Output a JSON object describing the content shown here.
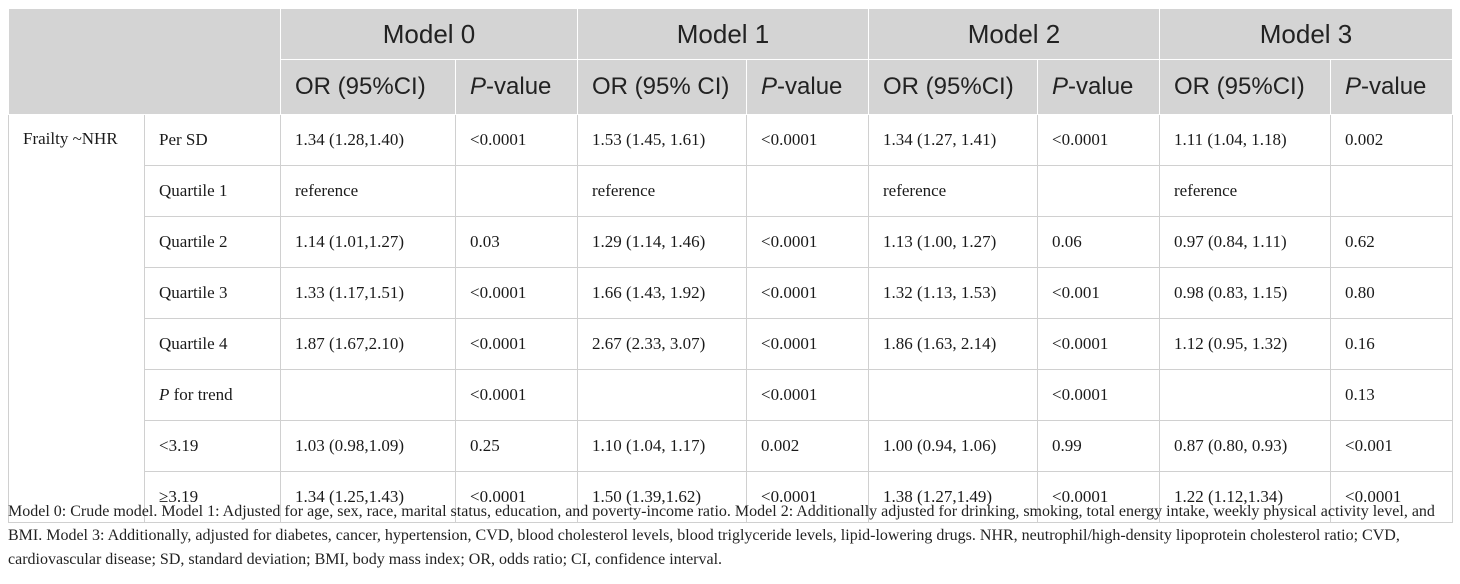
{
  "models": [
    "Model 0",
    "Model 1",
    "Model 2",
    "Model 3"
  ],
  "subheaders": {
    "or": "OR (95%CI)",
    "or_spaced": "OR (95% CI)",
    "p_italic": "P",
    "p_rest": "-value"
  },
  "group_label": "Frailty ~NHR",
  "rows": [
    {
      "label": "Per SD",
      "cells": [
        "1.34 (1.28,1.40)",
        "<0.0001",
        "1.53 (1.45, 1.61)",
        "<0.0001",
        "1.34 (1.27, 1.41)",
        "<0.0001",
        "1.11 (1.04, 1.18)",
        "0.002"
      ]
    },
    {
      "label": "Quartile 1",
      "cells": [
        "reference",
        "",
        "reference",
        "",
        "reference",
        "",
        "reference",
        ""
      ]
    },
    {
      "label": "Quartile 2",
      "cells": [
        "1.14 (1.01,1.27)",
        "0.03",
        "1.29 (1.14, 1.46)",
        "<0.0001",
        "1.13 (1.00, 1.27)",
        "0.06",
        "0.97 (0.84, 1.11)",
        "0.62"
      ]
    },
    {
      "label": "Quartile 3",
      "cells": [
        "1.33 (1.17,1.51)",
        "<0.0001",
        "1.66 (1.43, 1.92)",
        "<0.0001",
        "1.32 (1.13, 1.53)",
        "<0.001",
        "0.98 (0.83, 1.15)",
        "0.80"
      ]
    },
    {
      "label": "Quartile 4",
      "cells": [
        "1.87 (1.67,2.10)",
        "<0.0001",
        "2.67 (2.33, 3.07)",
        "<0.0001",
        "1.86 (1.63, 2.14)",
        "<0.0001",
        "1.12 (0.95, 1.32)",
        "0.16"
      ]
    },
    {
      "label_italic": "P",
      "label_rest": " for trend",
      "cells": [
        "",
        "<0.0001",
        "",
        "<0.0001",
        "",
        "<0.0001",
        "",
        "0.13"
      ]
    },
    {
      "label": "<3.19",
      "cells": [
        "1.03 (0.98,1.09)",
        "0.25",
        "1.10 (1.04, 1.17)",
        "0.002",
        "1.00 (0.94, 1.06)",
        "0.99",
        "0.87 (0.80, 0.93)",
        "<0.001"
      ]
    },
    {
      "label": "≥3.19",
      "cells": [
        "1.34 (1.25,1.43)",
        "<0.0001",
        "1.50 (1.39,1.62)",
        "<0.0001",
        "1.38 (1.27,1.49)",
        "<0.0001",
        "1.22 (1.12,1.34)",
        "<0.0001"
      ]
    }
  ],
  "footnote": "Model 0: Crude model. Model 1: Adjusted for age, sex, race, marital status, education, and poverty-income ratio. Model 2: Additionally adjusted for drinking, smoking, total energy intake, weekly physical activity level, and BMI. Model 3: Additionally, adjusted for diabetes, cancer, hypertension, CVD, blood cholesterol levels, blood triglyceride levels, lipid-lowering drugs. NHR, neutrophil/high-density lipoprotein cholesterol ratio; CVD, cardiovascular disease; SD, standard deviation; BMI, body mass index; OR, odds ratio; CI, confidence interval."
}
